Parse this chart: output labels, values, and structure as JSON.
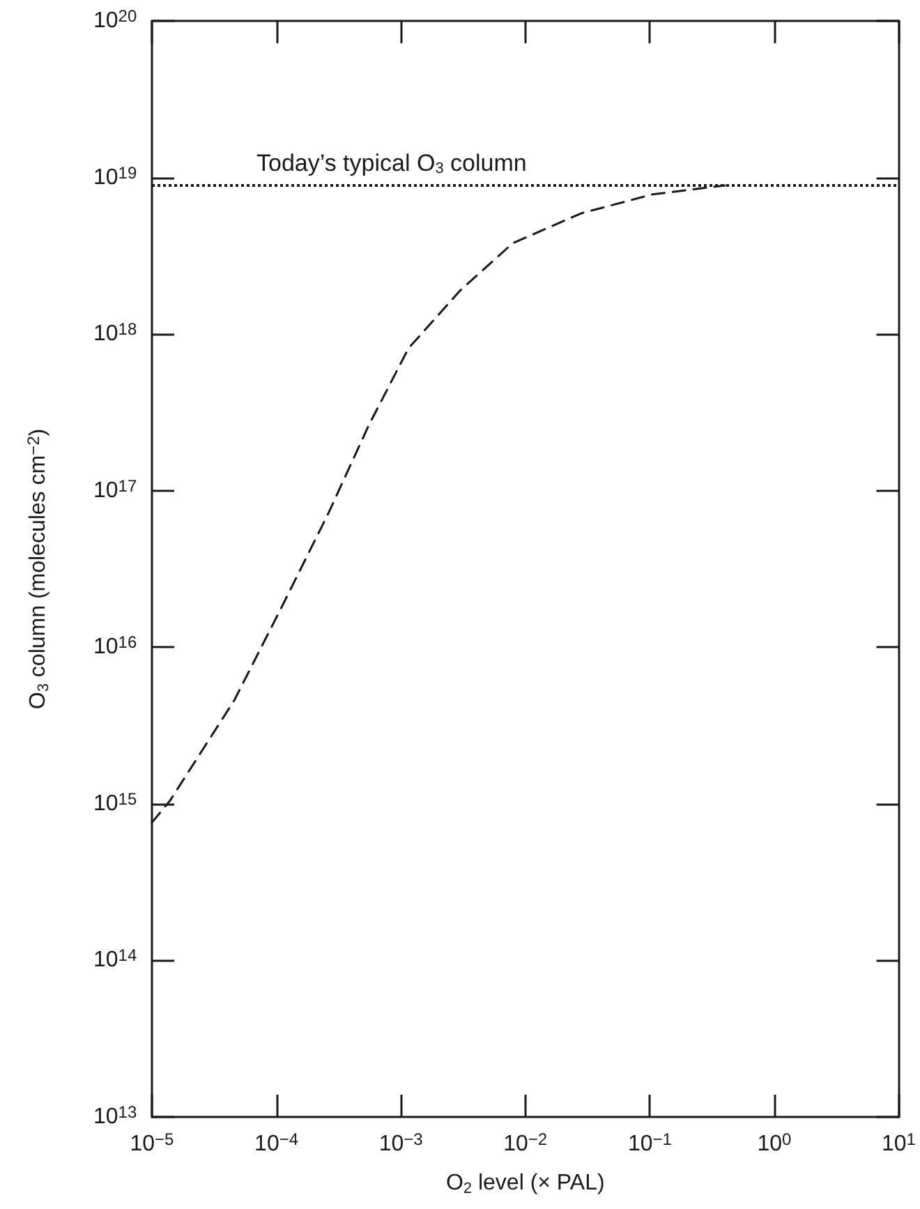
{
  "chart_data": {
    "type": "line",
    "xlabel": "O$_{2}$ level (× PAL)",
    "ylabel": "O$_{3}$ column (molecules cm$^{−2}$)",
    "log": "xy",
    "grid": false,
    "marker": "none",
    "line_style": "dashed",
    "xlim": [
      1e-05,
      10
    ],
    "ylim": [
      10000000000000.0,
      1e+20
    ],
    "xticks": [
      {
        "value": 1e-05,
        "label": "10$^{−5}$"
      },
      {
        "value": 0.0001,
        "label": "10$^{−4}$"
      },
      {
        "value": 0.001,
        "label": "10$^{−3}$"
      },
      {
        "value": 0.01,
        "label": "10$^{−2}$"
      },
      {
        "value": 0.1,
        "label": "10$^{−1}$"
      },
      {
        "value": 1,
        "label": "10$^{0}$"
      },
      {
        "value": 10,
        "label": "10$^{1}$"
      }
    ],
    "yticks": [
      {
        "value": 10000000000000.0,
        "label": "10$^{13}$"
      },
      {
        "value": 100000000000000.0,
        "label": "10$^{14}$"
      },
      {
        "value": 1000000000000000.0,
        "label": "10$^{15}$"
      },
      {
        "value": 1e+16,
        "label": "10$^{16}$"
      },
      {
        "value": 1e+17,
        "label": "10$^{17}$"
      },
      {
        "value": 1e+18,
        "label": "10$^{18}$"
      },
      {
        "value": 1e+19,
        "label": "10$^{19}$"
      },
      {
        "value": 1e+20,
        "label": "10$^{20}$"
      }
    ],
    "series": [
      {
        "color": "#1a1a1a",
        "x": [
          1e-05,
          1.4e-05,
          4.6e-05,
          0.00011,
          0.00026,
          0.00055,
          0.00115,
          0.003,
          0.0079,
          0.028,
          0.105,
          0.4
        ],
        "values": [
          760000000000000.0,
          1050000000000000.0,
          4600000000000000.0,
          1.8e+16,
          7.1e+16,
          2.6e+17,
          8.1e+17,
          1.9e+18,
          3.8e+18,
          5.9e+18,
          7.8e+18,
          8.9e+18
        ]
      }
    ],
    "ref_lines": [
      {
        "axis": "y",
        "value": 9e+18,
        "label": "Today’s typical O$_{3}$ column",
        "color": "#1a1a1a",
        "line_style": "dotted"
      }
    ]
  }
}
